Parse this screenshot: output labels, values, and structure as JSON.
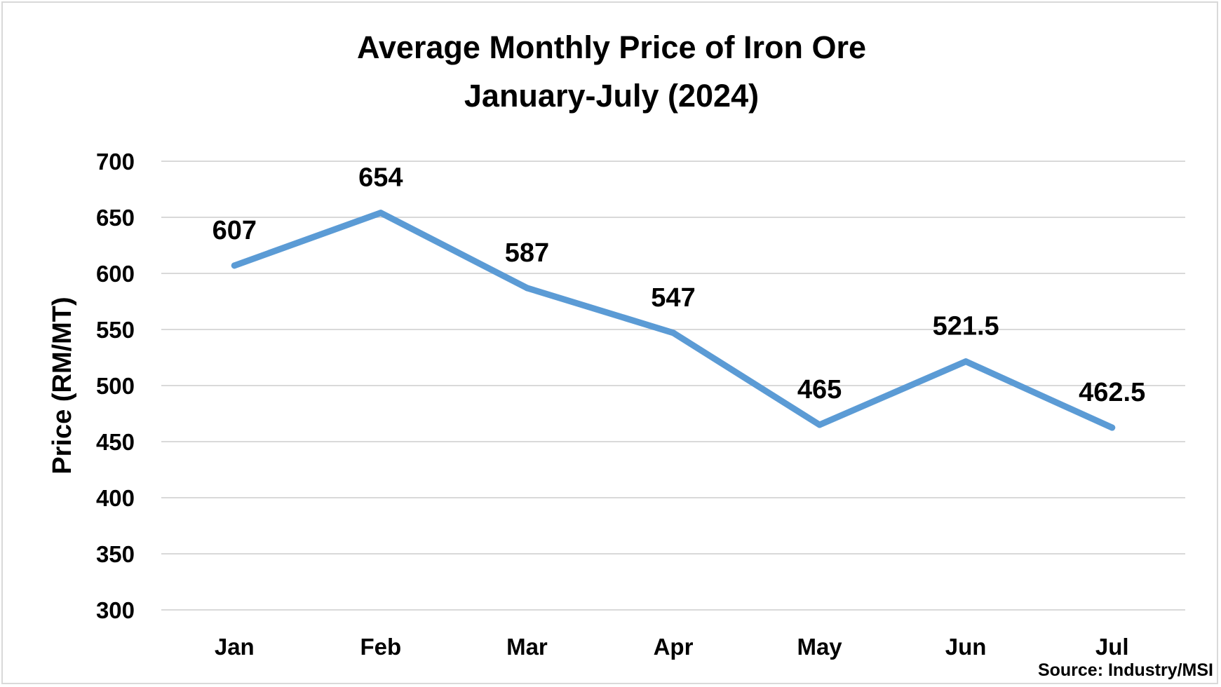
{
  "chart_data": {
    "type": "line",
    "title": "Average Monthly Price of Iron Ore",
    "subtitle": "January-July (2024)",
    "xlabel": "",
    "ylabel": "Price (RM/MT)",
    "categories": [
      "Jan",
      "Feb",
      "Mar",
      "Apr",
      "May",
      "Jun",
      "Jul"
    ],
    "series": [
      {
        "values": [
          607,
          654,
          587,
          547,
          465,
          521.5,
          462.5
        ],
        "data_labels": [
          "607",
          "654",
          "587",
          "547",
          "465",
          "521.5",
          "462.5"
        ]
      }
    ],
    "ylim": [
      300,
      700
    ],
    "yticks": [
      "300",
      "350",
      "400",
      "450",
      "500",
      "550",
      "600",
      "650",
      "700"
    ],
    "grid": true,
    "legend": "none",
    "line_color": "#5b9bd5",
    "gridline_color": "#d9d9d9"
  },
  "source": "Source: Industry/MSI"
}
